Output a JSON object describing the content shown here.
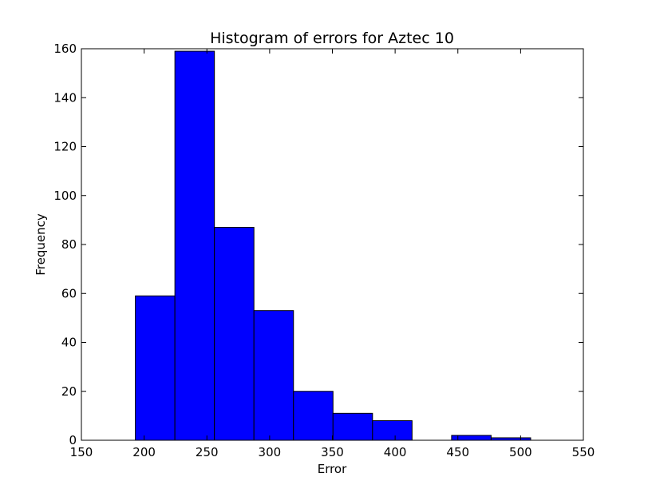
{
  "chart_data": {
    "type": "bar",
    "title": "Histogram of errors for Aztec 10",
    "xlabel": "Error",
    "ylabel": "Frequency",
    "xlim": [
      150,
      550
    ],
    "ylim": [
      0,
      160
    ],
    "xticks": [
      150,
      200,
      250,
      300,
      350,
      400,
      450,
      500,
      550
    ],
    "yticks": [
      0,
      20,
      40,
      60,
      80,
      100,
      120,
      140,
      160
    ],
    "bins": [
      {
        "start": 193,
        "end": 224.5,
        "value": 59
      },
      {
        "start": 224.5,
        "end": 256,
        "value": 159
      },
      {
        "start": 256,
        "end": 287.5,
        "value": 87
      },
      {
        "start": 287.5,
        "end": 319,
        "value": 53
      },
      {
        "start": 319,
        "end": 350.5,
        "value": 20
      },
      {
        "start": 350.5,
        "end": 382,
        "value": 11
      },
      {
        "start": 382,
        "end": 413.5,
        "value": 8
      },
      {
        "start": 413.5,
        "end": 445,
        "value": 0
      },
      {
        "start": 445,
        "end": 476.5,
        "value": 2
      },
      {
        "start": 476.5,
        "end": 508,
        "value": 1
      }
    ],
    "bar_color": "#0000ff",
    "edge_color": "#000000",
    "grid": false,
    "legend": "none"
  }
}
